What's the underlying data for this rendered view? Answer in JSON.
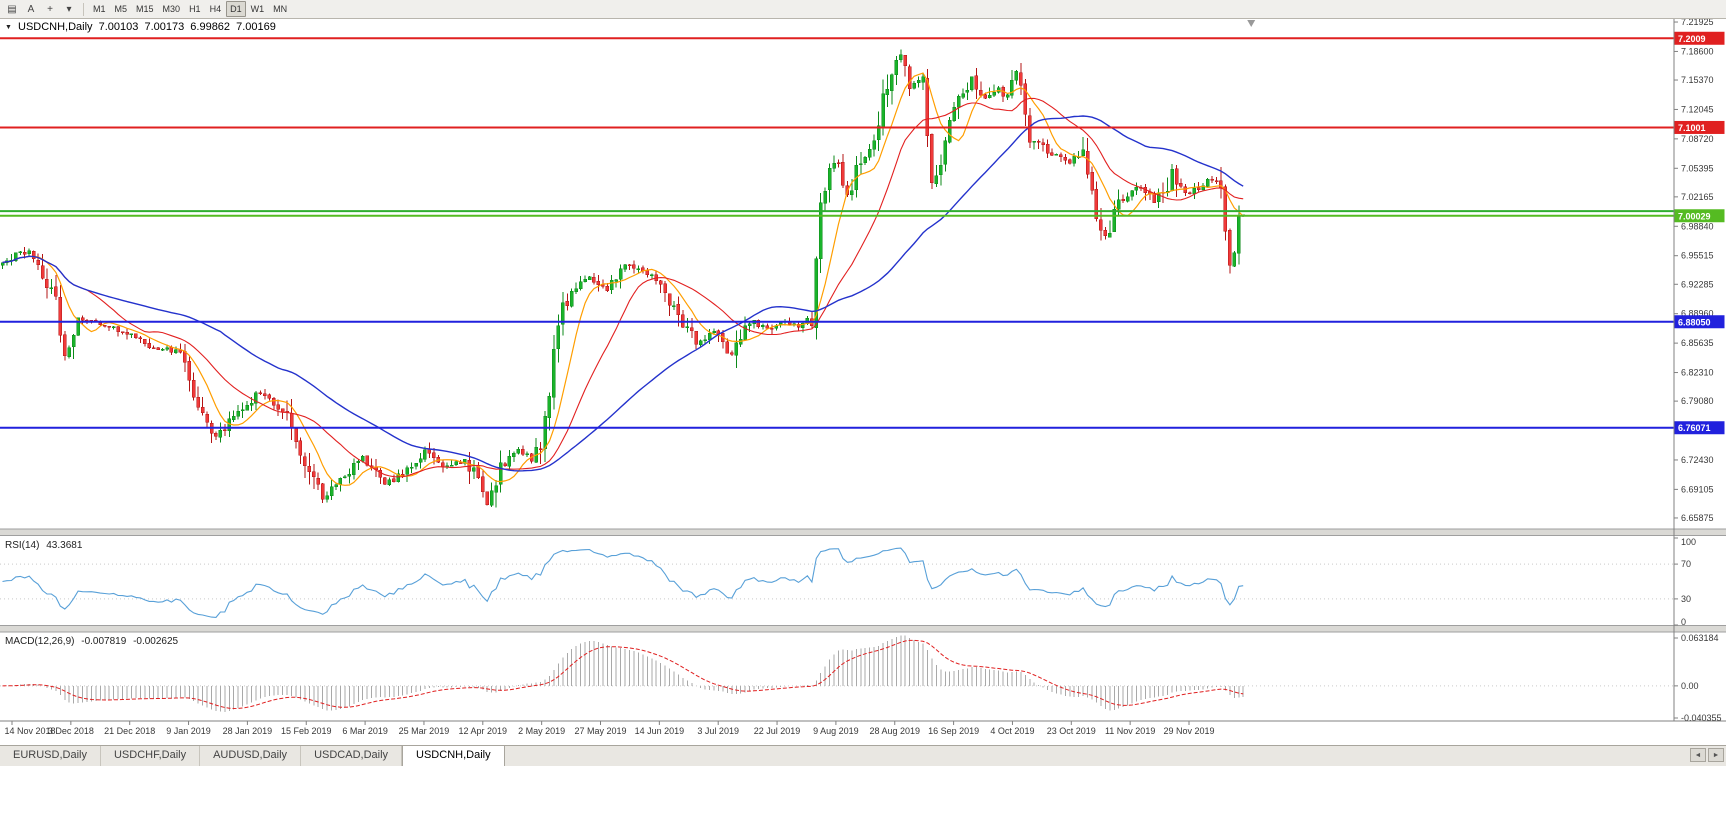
{
  "toolbar": {
    "tools": [
      {
        "name": "chart-window-icon",
        "glyph": "▤"
      },
      {
        "name": "cursor-a-icon",
        "glyph": "A"
      },
      {
        "name": "crosshair-icon",
        "glyph": "+"
      },
      {
        "name": "drawing-tools-dropdown-icon",
        "glyph": "▾"
      }
    ],
    "timeframes": [
      "M1",
      "M5",
      "M15",
      "M30",
      "H1",
      "H4",
      "D1",
      "W1",
      "MN"
    ],
    "active_timeframe": "D1"
  },
  "header": {
    "marker_icon": "▼",
    "symbol": "USDCNH,Daily",
    "open": "7.00103",
    "high": "7.00173",
    "low": "6.99862",
    "close": "7.00169"
  },
  "rsi": {
    "label": "RSI(14)",
    "value": "43.3681",
    "axis_labels": [
      "100",
      "70",
      "30",
      "0"
    ],
    "levels": [
      70,
      30
    ]
  },
  "macd": {
    "label": "MACD(12,26,9)",
    "value1": "-0.007819",
    "value2": "-0.002625",
    "axis_labels": [
      "0.063184",
      "0.00",
      "-0.040355"
    ]
  },
  "tabs": [
    {
      "label": "EURUSD,Daily",
      "active": false
    },
    {
      "label": "USDCHF,Daily",
      "active": false
    },
    {
      "label": "AUDUSD,Daily",
      "active": false
    },
    {
      "label": "USDCAD,Daily",
      "active": false
    },
    {
      "label": "USDCNH,Daily",
      "active": true
    }
  ],
  "scrollbar": {
    "left_icon": "◄",
    "right_icon": "►"
  },
  "colors": {
    "candle_up": "#1ab32b",
    "candle_up_border": "#0c8a1a",
    "candle_down": "#ef3a3a",
    "candle_down_border": "#b31414",
    "rsi_line": "#58a0d8",
    "macd_histogram": "#a9a9a9",
    "macd_signal": "#e02020",
    "axis_text": "#383838",
    "axis_line": "#808080",
    "level_dotted": "#c9c9c9",
    "shift_marker": "#999999"
  },
  "chart_data": {
    "type": "candlestick",
    "symbol": "USDCNH",
    "timeframe": "Daily",
    "current_ohlc": {
      "open": 7.00103,
      "high": 7.00173,
      "low": 6.99862,
      "close": 7.00169
    },
    "bars": 280,
    "y_range": {
      "top": 7.2238,
      "bottom": 6.6474
    },
    "price_axis_ticks": [
      "7.21925",
      "7.18600",
      "7.15370",
      "7.12045",
      "7.08720",
      "7.05395",
      "7.02165",
      "6.98840",
      "6.95515",
      "6.92285",
      "6.88960",
      "6.85635",
      "6.82310",
      "6.79080",
      "6.75755",
      "6.72430",
      "6.69105",
      "6.65875"
    ],
    "dates": [
      "14 Nov 2018",
      "3 Dec 2018",
      "21 Dec 2018",
      "9 Jan 2019",
      "28 Jan 2019",
      "15 Feb 2019",
      "6 Mar 2019",
      "25 Mar 2019",
      "12 Apr 2019",
      "2 May 2019",
      "27 May 2019",
      "14 Jun 2019",
      "3 Jul 2019",
      "22 Jul 2019",
      "9 Aug 2019",
      "28 Aug 2019",
      "16 Sep 2019",
      "4 Oct 2019",
      "23 Oct 2019",
      "11 Nov 2019",
      "29 Nov 2019"
    ],
    "horizontal_lines": [
      {
        "price": 7.2009,
        "label": "7.2009",
        "color": "#e02020",
        "width": 2
      },
      {
        "price": 7.1001,
        "label": "7.1001",
        "color": "#e02020",
        "width": 2
      },
      {
        "price": 7.0055,
        "label": null,
        "color": "#2fae2f",
        "width": 2
      },
      {
        "price": 7.0003,
        "label": "7.00029",
        "color": "#55bb22",
        "width": 2
      },
      {
        "price": 6.8805,
        "label": "6.88050",
        "color": "#2121dd",
        "width": 2
      },
      {
        "price": 6.76071,
        "label": "6.76071",
        "color": "#2121dd",
        "width": 2
      }
    ],
    "moving_averages": [
      {
        "period": 8,
        "color": "#ff9e00",
        "width": 1.2
      },
      {
        "period": 20,
        "color": "#e22020",
        "width": 1.1
      },
      {
        "period": 50,
        "color": "#2432cc",
        "width": 1.4
      }
    ],
    "indicators": {
      "rsi": {
        "period": 14,
        "current": 43.3681,
        "levels": [
          70,
          30
        ]
      },
      "macd": {
        "fast": 12,
        "slow": 26,
        "signal": 9,
        "current_macd": -0.007819,
        "current_signal": -0.002625
      }
    },
    "close_path_anchors": [
      [
        0,
        6.945
      ],
      [
        3,
        6.955
      ],
      [
        6,
        6.962
      ],
      [
        9,
        6.935
      ],
      [
        12,
        6.905
      ],
      [
        14,
        6.84
      ],
      [
        17,
        6.885
      ],
      [
        22,
        6.878
      ],
      [
        28,
        6.868
      ],
      [
        34,
        6.852
      ],
      [
        40,
        6.846
      ],
      [
        44,
        6.787
      ],
      [
        48,
        6.752
      ],
      [
        53,
        6.778
      ],
      [
        58,
        6.8
      ],
      [
        64,
        6.777
      ],
      [
        68,
        6.722
      ],
      [
        72,
        6.683
      ],
      [
        76,
        6.703
      ],
      [
        81,
        6.727
      ],
      [
        86,
        6.696
      ],
      [
        91,
        6.712
      ],
      [
        95,
        6.737
      ],
      [
        100,
        6.716
      ],
      [
        104,
        6.727
      ],
      [
        107,
        6.697
      ],
      [
        109,
        6.676
      ],
      [
        112,
        6.717
      ],
      [
        116,
        6.736
      ],
      [
        119,
        6.726
      ],
      [
        121,
        6.744
      ],
      [
        123,
        6.8
      ],
      [
        125,
        6.885
      ],
      [
        128,
        6.916
      ],
      [
        132,
        6.932
      ],
      [
        136,
        6.917
      ],
      [
        140,
        6.946
      ],
      [
        144,
        6.936
      ],
      [
        148,
        6.926
      ],
      [
        152,
        6.886
      ],
      [
        156,
        6.857
      ],
      [
        160,
        6.867
      ],
      [
        164,
        6.842
      ],
      [
        168,
        6.882
      ],
      [
        172,
        6.872
      ],
      [
        175,
        6.881
      ],
      [
        179,
        6.876
      ],
      [
        182,
        6.884
      ],
      [
        184,
        7.022
      ],
      [
        186,
        7.051
      ],
      [
        188,
        7.062
      ],
      [
        190,
        7.022
      ],
      [
        193,
        7.062
      ],
      [
        196,
        7.083
      ],
      [
        198,
        7.13
      ],
      [
        200,
        7.162
      ],
      [
        202,
        7.183
      ],
      [
        204,
        7.148
      ],
      [
        207,
        7.155
      ],
      [
        209,
        7.042
      ],
      [
        211,
        7.065
      ],
      [
        214,
        7.118
      ],
      [
        218,
        7.158
      ],
      [
        221,
        7.132
      ],
      [
        224,
        7.146
      ],
      [
        226,
        7.134
      ],
      [
        228,
        7.166
      ],
      [
        231,
        7.092
      ],
      [
        235,
        7.072
      ],
      [
        240,
        7.06
      ],
      [
        243,
        7.072
      ],
      [
        246,
        7.005
      ],
      [
        248,
        6.978
      ],
      [
        251,
        7.012
      ],
      [
        253,
        7.022
      ],
      [
        256,
        7.032
      ],
      [
        259,
        7.016
      ],
      [
        262,
        7.036
      ],
      [
        263,
        7.052
      ],
      [
        265,
        7.03
      ],
      [
        267,
        7.026
      ],
      [
        270,
        7.036
      ],
      [
        272,
        7.042
      ],
      [
        274,
        7.032
      ],
      [
        276,
        6.946
      ],
      [
        277,
        6.957
      ],
      [
        278,
        6.995
      ],
      [
        279,
        7.0017
      ]
    ]
  }
}
